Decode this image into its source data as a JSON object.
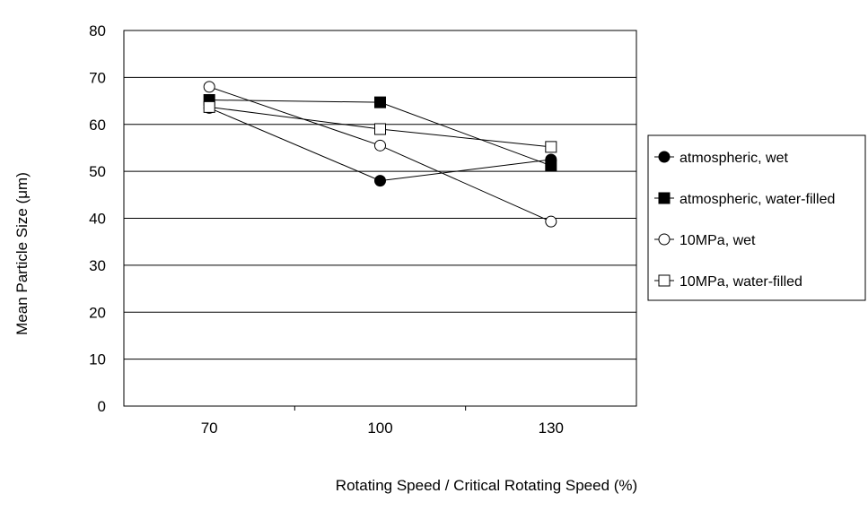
{
  "chart_data": {
    "type": "line",
    "title": "",
    "xlabel": "Rotating Speed / Critical Rotating Speed (%)",
    "ylabel": "Mean Particle Size (μm)",
    "categories": [
      "70",
      "100",
      "130"
    ],
    "ylim": [
      0,
      80
    ],
    "yticks": [
      "0",
      "10",
      "20",
      "30",
      "40",
      "50",
      "60",
      "70",
      "80"
    ],
    "grid": "horizontal",
    "legend_position": "right",
    "series": [
      {
        "name": "atmospheric, wet",
        "marker": "filled-circle",
        "values": [
          63.5,
          48,
          52.5
        ]
      },
      {
        "name": "atmospheric, water-filled",
        "marker": "filled-square",
        "values": [
          65.2,
          64.7,
          51.2
        ]
      },
      {
        "name": "10MPa, wet",
        "marker": "open-circle",
        "values": [
          68,
          55.5,
          39.3
        ]
      },
      {
        "name": "10MPa, water-filled",
        "marker": "open-square",
        "values": [
          63.7,
          59,
          55.2
        ]
      }
    ]
  }
}
